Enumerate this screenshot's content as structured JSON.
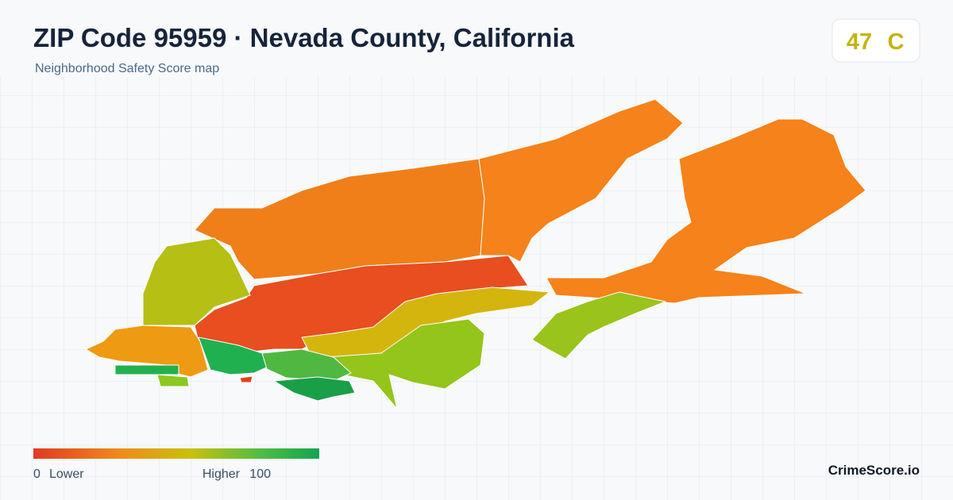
{
  "header": {
    "title": "ZIP Code 95959 · Nevada County, California",
    "subtitle": "Neighborhood Safety Score map"
  },
  "score": {
    "value": "47",
    "grade": "C"
  },
  "legend": {
    "min": "0",
    "min_label": "Lower",
    "max_label": "Higher",
    "max": "100"
  },
  "brand": "CrimeScore.io"
}
